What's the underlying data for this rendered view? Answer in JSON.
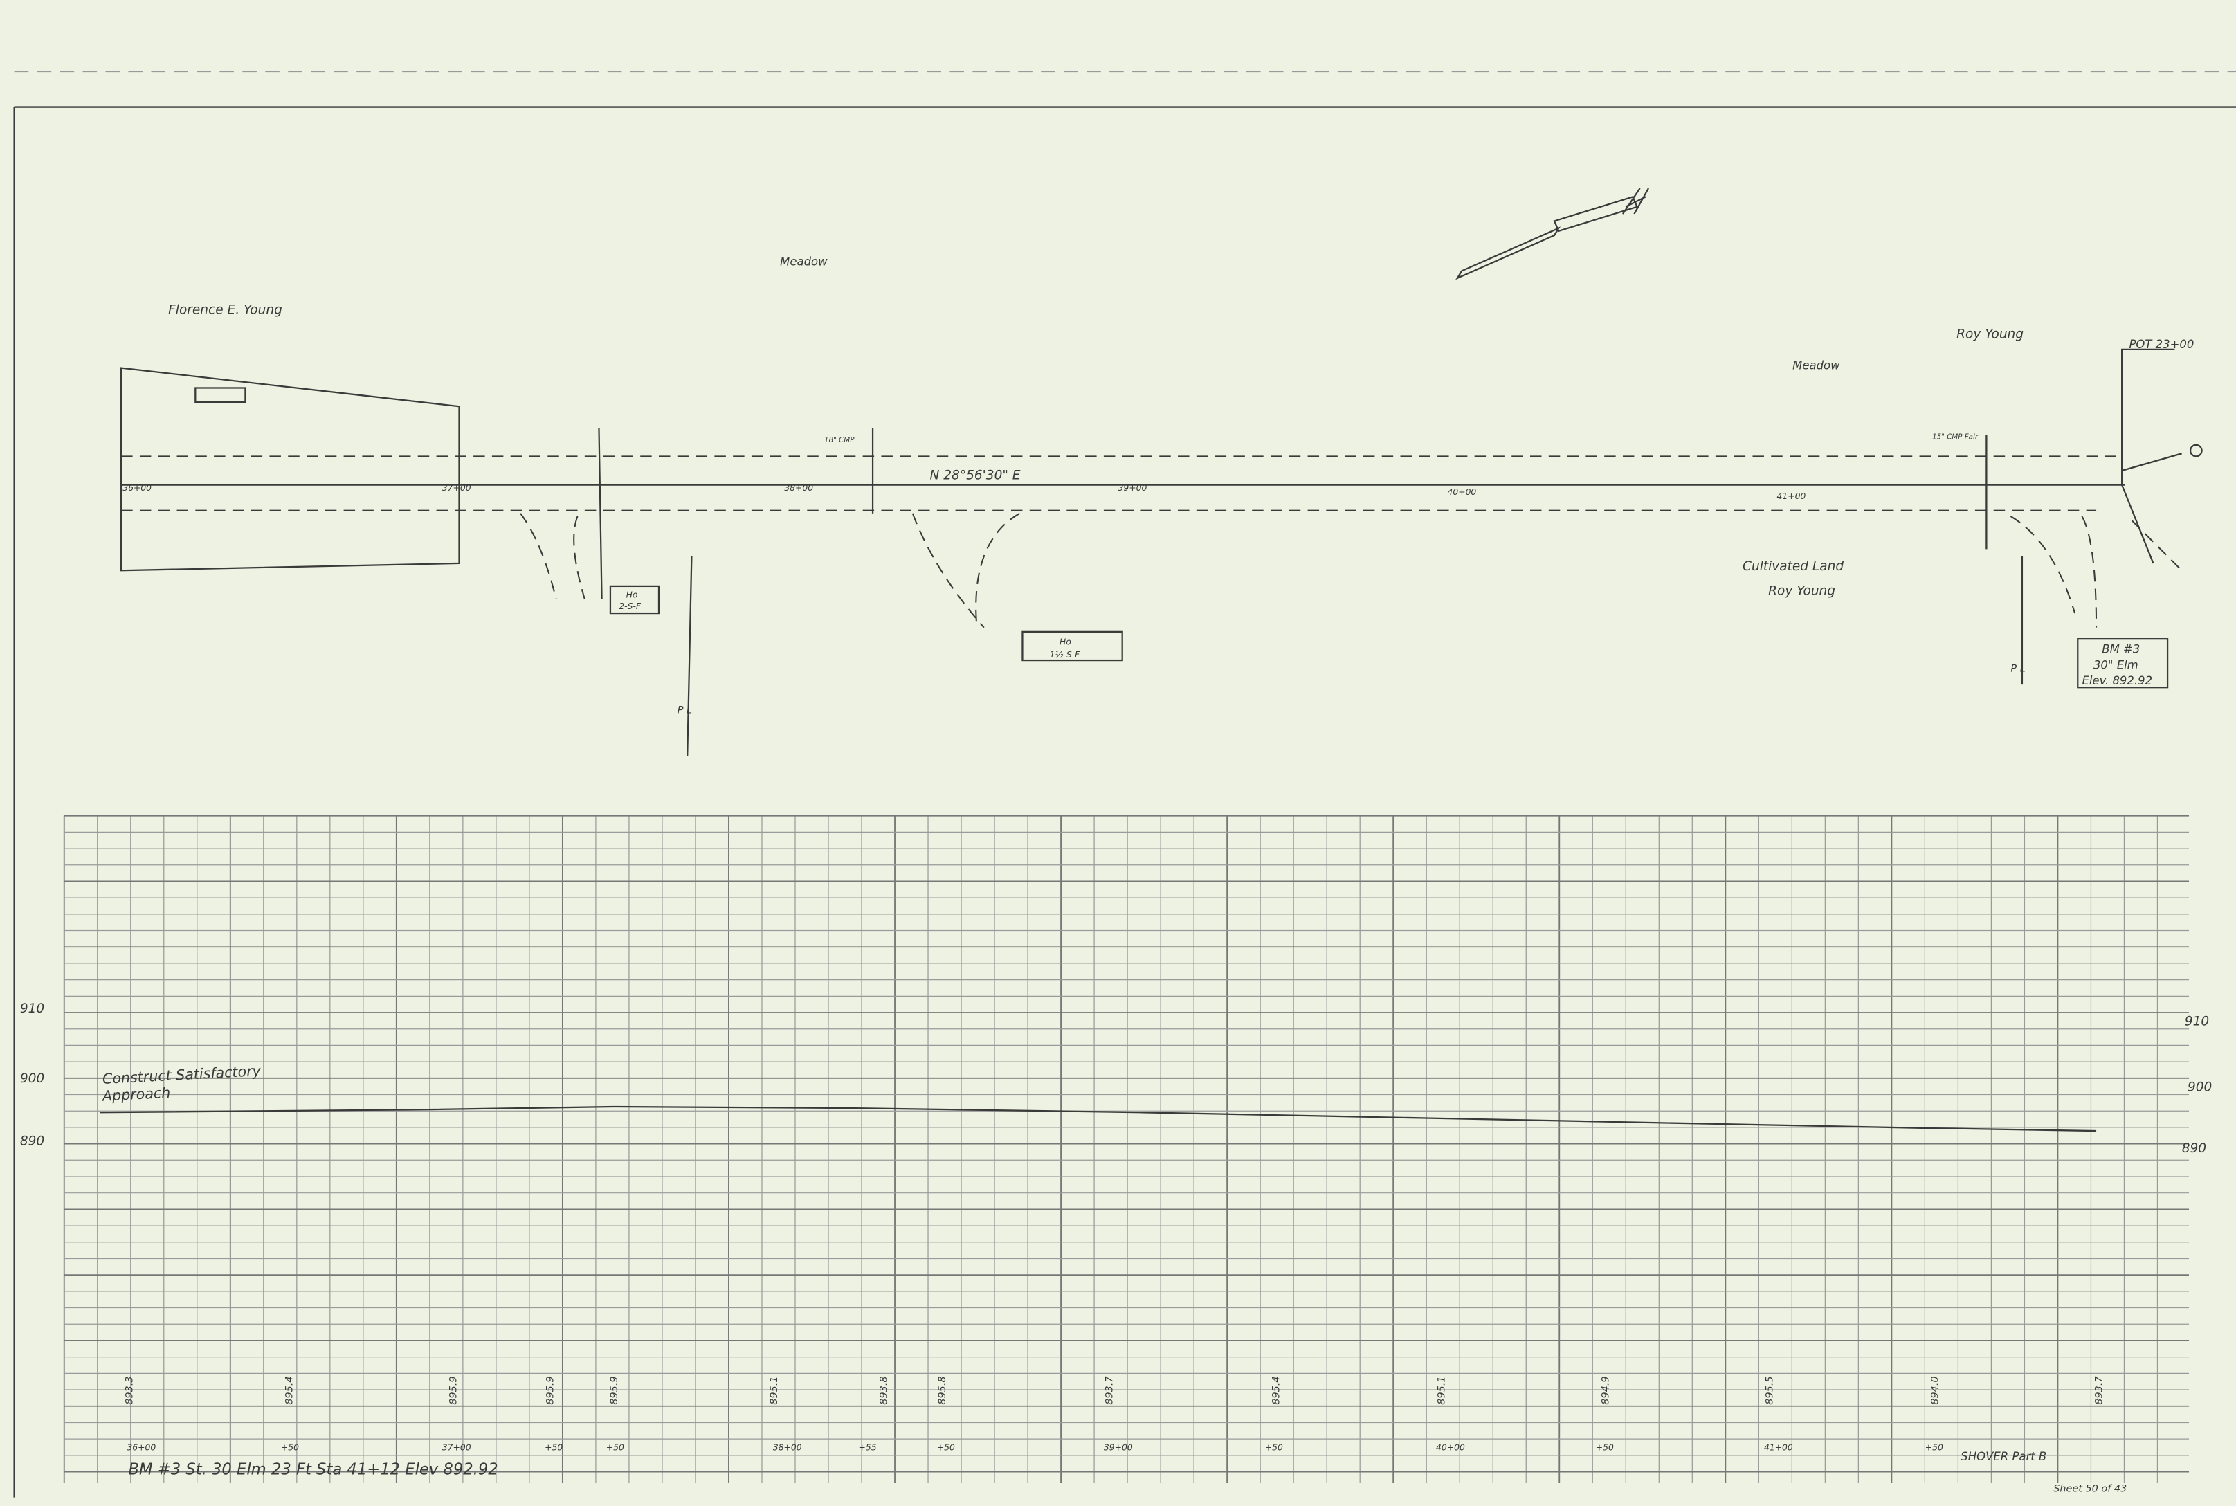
{
  "plan": {
    "owners": [
      "Florence E. Young",
      "Roy Young"
    ],
    "land_labels": [
      "Meadow",
      "Meadow",
      "Cultivated Land",
      "Roy Young"
    ],
    "bearing": "N 28°56'30\" E",
    "pot": "POT 23+00",
    "stations": [
      "36+00",
      "37+00",
      "38+00",
      "39+00",
      "40+00",
      "41+00"
    ],
    "structures": [
      [
        "Ho",
        "2-S-F"
      ],
      [
        "Ho",
        "1½-S-F"
      ]
    ],
    "property_lines": [
      "P L",
      "P L"
    ],
    "culverts": [
      "18\" CMP",
      "15\" CMP Fair"
    ],
    "benchmark": [
      "BM #3",
      "30\" Elm",
      "Elev. 892.92"
    ]
  },
  "profile": {
    "elevations_left": [
      "910",
      "900",
      "890"
    ],
    "elevations_right": [
      "910",
      "900",
      "890"
    ],
    "note": [
      "Construct Satisfactory",
      "Approach"
    ],
    "ground_elevations": [
      "893.3",
      "895.4",
      "895.9",
      "895.9",
      "895.9",
      "895.1",
      "893.8",
      "895.8",
      "893.7",
      "895.4",
      "895.1",
      "894.9",
      "895.5",
      "894.0",
      "893.7"
    ],
    "stations": [
      "36+00",
      "+50",
      "37+00",
      "+50",
      "+50",
      "38+00",
      "+55",
      "+50",
      "39+00",
      "+50",
      "40+00",
      "+50",
      "41+00",
      "+50"
    ],
    "footer": "BM #3 St. 30 Elm 23 Ft Sta 41+12 Elev 892.92",
    "project": "SHOVER Part B",
    "sheet": "Sheet 50 of 43"
  }
}
